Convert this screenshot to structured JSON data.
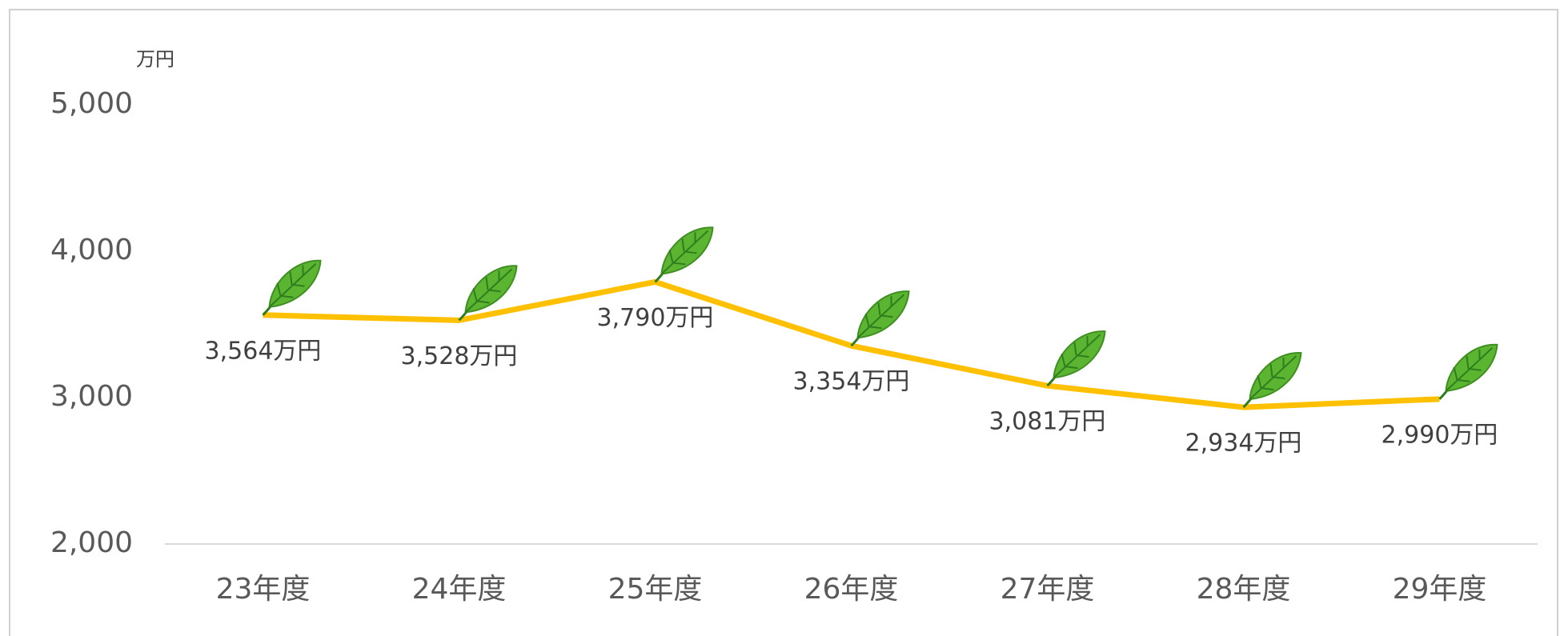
{
  "chart_data": {
    "type": "line",
    "y_unit": "万円",
    "categories": [
      "23年度",
      "24年度",
      "25年度",
      "26年度",
      "27年度",
      "28年度",
      "29年度"
    ],
    "series": [
      {
        "name": "万円",
        "color": "#FFC000",
        "values": [
          3564,
          3528,
          3790,
          3354,
          3081,
          2934,
          2990
        ],
        "value_labels": [
          "3,564万円",
          "3,528万円",
          "3,790万円",
          "3,354万円",
          "3,081万円",
          "2,934万円",
          "2,990万円"
        ]
      }
    ],
    "ylim": [
      2000,
      5000
    ],
    "yticks": [
      {
        "value": 2000,
        "label": "2,000"
      },
      {
        "value": 3000,
        "label": "3,000"
      },
      {
        "value": 4000,
        "label": "4,000"
      },
      {
        "value": 5000,
        "label": "5,000"
      }
    ],
    "grid": false
  }
}
